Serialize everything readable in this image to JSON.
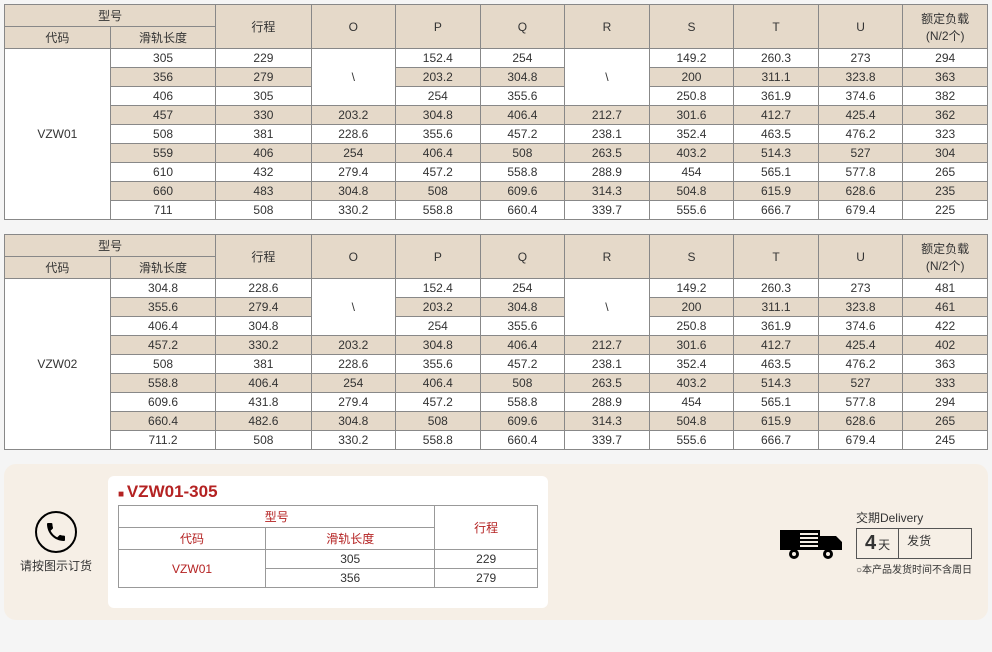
{
  "headers": {
    "model": "型号",
    "code": "代码",
    "rail_len": "滑轨长度",
    "stroke": "行程",
    "O": "O",
    "P": "P",
    "Q": "Q",
    "R": "R",
    "S": "S",
    "T": "T",
    "U": "U",
    "load": "额定负载\n(N/2个)",
    "slash": "\\"
  },
  "table1": {
    "code": "VZW01",
    "rows": [
      {
        "rail": "305",
        "stroke": "229",
        "O": "",
        "P": "152.4",
        "Q": "254",
        "R": "",
        "S": "149.2",
        "T": "260.3",
        "U": "273",
        "load": "294"
      },
      {
        "rail": "356",
        "stroke": "279",
        "O": "",
        "P": "203.2",
        "Q": "304.8",
        "R": "",
        "S": "200",
        "T": "311.1",
        "U": "323.8",
        "load": "363"
      },
      {
        "rail": "406",
        "stroke": "305",
        "O": "",
        "P": "254",
        "Q": "355.6",
        "R": "",
        "S": "250.8",
        "T": "361.9",
        "U": "374.6",
        "load": "382"
      },
      {
        "rail": "457",
        "stroke": "330",
        "O": "203.2",
        "P": "304.8",
        "Q": "406.4",
        "R": "212.7",
        "S": "301.6",
        "T": "412.7",
        "U": "425.4",
        "load": "362"
      },
      {
        "rail": "508",
        "stroke": "381",
        "O": "228.6",
        "P": "355.6",
        "Q": "457.2",
        "R": "238.1",
        "S": "352.4",
        "T": "463.5",
        "U": "476.2",
        "load": "323"
      },
      {
        "rail": "559",
        "stroke": "406",
        "O": "254",
        "P": "406.4",
        "Q": "508",
        "R": "263.5",
        "S": "403.2",
        "T": "514.3",
        "U": "527",
        "load": "304"
      },
      {
        "rail": "610",
        "stroke": "432",
        "O": "279.4",
        "P": "457.2",
        "Q": "558.8",
        "R": "288.9",
        "S": "454",
        "T": "565.1",
        "U": "577.8",
        "load": "265"
      },
      {
        "rail": "660",
        "stroke": "483",
        "O": "304.8",
        "P": "508",
        "Q": "609.6",
        "R": "314.3",
        "S": "504.8",
        "T": "615.9",
        "U": "628.6",
        "load": "235"
      },
      {
        "rail": "711",
        "stroke": "508",
        "O": "330.2",
        "P": "558.8",
        "Q": "660.4",
        "R": "339.7",
        "S": "555.6",
        "T": "666.7",
        "U": "679.4",
        "load": "225"
      }
    ]
  },
  "table2": {
    "code": "VZW02",
    "rows": [
      {
        "rail": "304.8",
        "stroke": "228.6",
        "O": "",
        "P": "152.4",
        "Q": "254",
        "R": "",
        "S": "149.2",
        "T": "260.3",
        "U": "273",
        "load": "481"
      },
      {
        "rail": "355.6",
        "stroke": "279.4",
        "O": "",
        "P": "203.2",
        "Q": "304.8",
        "R": "",
        "S": "200",
        "T": "311.1",
        "U": "323.8",
        "load": "461"
      },
      {
        "rail": "406.4",
        "stroke": "304.8",
        "O": "",
        "P": "254",
        "Q": "355.6",
        "R": "",
        "S": "250.8",
        "T": "361.9",
        "U": "374.6",
        "load": "422"
      },
      {
        "rail": "457.2",
        "stroke": "330.2",
        "O": "203.2",
        "P": "304.8",
        "Q": "406.4",
        "R": "212.7",
        "S": "301.6",
        "T": "412.7",
        "U": "425.4",
        "load": "402"
      },
      {
        "rail": "508",
        "stroke": "381",
        "O": "228.6",
        "P": "355.6",
        "Q": "457.2",
        "R": "238.1",
        "S": "352.4",
        "T": "463.5",
        "U": "476.2",
        "load": "363"
      },
      {
        "rail": "558.8",
        "stroke": "406.4",
        "O": "254",
        "P": "406.4",
        "Q": "508",
        "R": "263.5",
        "S": "403.2",
        "T": "514.3",
        "U": "527",
        "load": "333"
      },
      {
        "rail": "609.6",
        "stroke": "431.8",
        "O": "279.4",
        "P": "457.2",
        "Q": "558.8",
        "R": "288.9",
        "S": "454",
        "T": "565.1",
        "U": "577.8",
        "load": "294"
      },
      {
        "rail": "660.4",
        "stroke": "482.6",
        "O": "304.8",
        "P": "508",
        "Q": "609.6",
        "R": "314.3",
        "S": "504.8",
        "T": "615.9",
        "U": "628.6",
        "load": "265"
      },
      {
        "rail": "711.2",
        "stroke": "508",
        "O": "330.2",
        "P": "558.8",
        "Q": "660.4",
        "R": "339.7",
        "S": "555.6",
        "T": "666.7",
        "U": "679.4",
        "load": "245"
      }
    ]
  },
  "order": {
    "phone_label": "请按图示订货",
    "part_no": "VZW01-305",
    "row1": [
      "305",
      "229"
    ],
    "row2": [
      "356",
      "279"
    ],
    "code_val": "VZW01",
    "delivery_label": "交期Delivery",
    "days": "4",
    "days_unit": "天",
    "ship": "发货",
    "note": "○本产品发货时间不含周日"
  }
}
